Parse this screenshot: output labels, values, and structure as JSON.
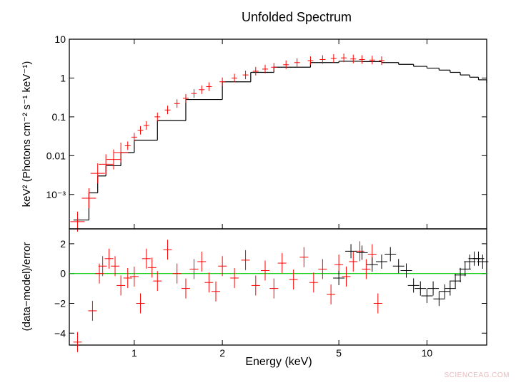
{
  "title": "Unfolded Spectrum",
  "watermark": "SCIENCEAG.COM",
  "colors": {
    "data": "#ff0000",
    "model": "#000000",
    "zero_line": "#00c800",
    "watermark": "#e9b9b9"
  },
  "chart_data": [
    {
      "type": "line",
      "panel": "top",
      "title": "Unfolded Spectrum",
      "xlabel": "",
      "ylabel": "keV² (Photons cm⁻² s⁻¹ keV⁻¹)",
      "x_scale": "log",
      "y_scale": "log",
      "xlim": [
        0.6,
        16
      ],
      "ylim": [
        0.00013,
        10
      ],
      "y_ticks": [
        0.001,
        0.01,
        0.1,
        1,
        10
      ],
      "y_tick_labels": [
        "10⁻³",
        "0.01",
        "0.1",
        "1",
        "10"
      ],
      "series": [
        {
          "role": "data",
          "x": [
            0.64,
            0.7,
            0.75,
            0.8,
            0.85,
            0.9,
            0.95,
            1.0,
            1.05,
            1.1,
            1.2,
            1.3,
            1.4,
            1.5,
            1.6,
            1.7,
            1.8,
            2.0,
            2.2,
            2.4,
            2.6,
            2.8,
            3.0,
            3.3,
            3.6,
            4.0,
            4.4,
            4.8,
            5.2,
            5.6,
            6.0,
            6.5,
            7.0
          ],
          "y": [
            0.0002,
            0.0008,
            0.0035,
            0.006,
            0.008,
            0.012,
            0.018,
            0.03,
            0.045,
            0.06,
            0.1,
            0.15,
            0.22,
            0.3,
            0.4,
            0.5,
            0.6,
            0.8,
            1.0,
            1.2,
            1.5,
            1.7,
            1.9,
            2.2,
            2.5,
            2.8,
            3.0,
            3.2,
            3.3,
            3.1,
            3.0,
            2.9,
            2.8
          ]
        },
        {
          "role": "model",
          "x": [
            0.62,
            0.7,
            0.75,
            0.8,
            0.9,
            1.0,
            1.2,
            1.5,
            2.0,
            2.5,
            3.0,
            4.0,
            5.0,
            6.0,
            7.0,
            8.0,
            9.0,
            10.0,
            11.0,
            12.0,
            13.0,
            14.0,
            15.0,
            16.0
          ],
          "y": [
            0.00022,
            0.0011,
            0.003,
            0.0055,
            0.012,
            0.025,
            0.08,
            0.28,
            0.8,
            1.4,
            1.9,
            2.5,
            2.7,
            2.65,
            2.5,
            2.25,
            2.0,
            1.8,
            1.6,
            1.4,
            1.2,
            1.05,
            0.9,
            0.75
          ]
        }
      ]
    },
    {
      "type": "scatter",
      "panel": "bottom",
      "xlabel": "Energy (keV)",
      "ylabel": "(data−model)/error",
      "x_scale": "log",
      "xlim": [
        0.6,
        16
      ],
      "ylim": [
        -4.8,
        3
      ],
      "x_ticks": [
        1,
        2,
        5,
        10
      ],
      "x_tick_labels": [
        "1",
        "2",
        "5",
        "10"
      ],
      "y_ticks": [
        -4,
        -2,
        0,
        2
      ],
      "y_tick_labels": [
        "−4",
        "−2",
        "0",
        "2"
      ],
      "zero_line": 0,
      "series": [
        {
          "role": "data",
          "x": [
            0.64,
            0.72,
            0.76,
            0.78,
            0.82,
            0.86,
            0.9,
            0.95,
            1.0,
            1.05,
            1.1,
            1.15,
            1.2,
            1.3,
            1.4,
            1.5,
            1.6,
            1.7,
            1.8,
            1.9,
            2.0,
            2.2,
            2.4,
            2.6,
            2.8,
            3.0,
            3.2,
            3.5,
            3.8,
            4.1,
            4.4,
            4.7,
            5.0,
            5.3,
            5.6,
            5.9,
            6.2,
            6.5,
            6.8
          ],
          "y": [
            -4.6,
            -2.5,
            0.0,
            0.5,
            1.0,
            0.5,
            -0.8,
            -0.3,
            -0.2,
            -2.0,
            1.0,
            0.4,
            -0.5,
            1.6,
            0.0,
            -1.0,
            0.3,
            0.8,
            -0.6,
            -1.2,
            0.5,
            -0.3,
            0.9,
            -0.8,
            0.2,
            -1.0,
            0.7,
            -0.4,
            1.1,
            -0.6,
            0.3,
            -1.4,
            0.6,
            -0.2,
            0.8,
            1.5,
            0.3,
            1.3,
            -2.0
          ]
        },
        {
          "role": "model-range",
          "x": [
            5.0,
            5.5,
            6.0,
            6.5,
            7.0,
            7.5,
            8.0,
            8.5,
            9.0,
            9.5,
            10.0,
            10.5,
            11.0,
            11.5,
            12.0,
            12.5,
            13.0,
            13.5,
            14.0,
            14.5,
            15.0,
            15.5
          ],
          "y": [
            -0.3,
            1.5,
            1.4,
            0.6,
            0.8,
            1.3,
            0.5,
            0.2,
            -0.8,
            -1.0,
            -1.5,
            -1.0,
            -1.7,
            -1.2,
            -1.0,
            -0.5,
            -0.1,
            0.3,
            0.8,
            1.0,
            1.0,
            0.8
          ]
        }
      ]
    }
  ]
}
